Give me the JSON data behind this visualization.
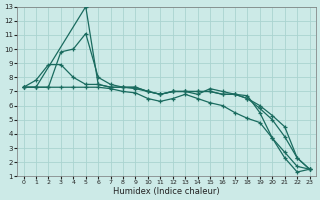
{
  "xlabel": "Humidex (Indice chaleur)",
  "bg_color": "#cceae7",
  "grid_color": "#aad4d0",
  "line_color": "#1a6b5f",
  "xlim": [
    -0.5,
    23.5
  ],
  "ylim": [
    1,
    13
  ],
  "xticks": [
    0,
    1,
    2,
    3,
    4,
    5,
    6,
    7,
    8,
    9,
    10,
    11,
    12,
    13,
    14,
    15,
    16,
    17,
    18,
    19,
    20,
    21,
    22,
    23
  ],
  "yticks": [
    1,
    2,
    3,
    4,
    5,
    6,
    7,
    8,
    9,
    10,
    11,
    12,
    13
  ],
  "line1_x": [
    0,
    1,
    5,
    6,
    7,
    8,
    9,
    10,
    11,
    12,
    13,
    14,
    15,
    16,
    17,
    18,
    19,
    20,
    21,
    22,
    23
  ],
  "line1_y": [
    7.3,
    7.3,
    13.0,
    7.5,
    7.3,
    7.3,
    7.3,
    7.0,
    6.8,
    7.0,
    7.0,
    6.8,
    7.2,
    7.0,
    6.8,
    6.7,
    5.5,
    3.7,
    2.3,
    1.3,
    1.5
  ],
  "line2_x": [
    0,
    1,
    2,
    3,
    4,
    5,
    6,
    7,
    8,
    9,
    10,
    11,
    12,
    13,
    14,
    15,
    16,
    17,
    18,
    19,
    20,
    21,
    22,
    23
  ],
  "line2_y": [
    7.3,
    7.3,
    7.3,
    9.8,
    10.0,
    11.1,
    8.0,
    7.5,
    7.3,
    7.3,
    7.0,
    6.8,
    7.0,
    7.0,
    7.0,
    7.0,
    6.8,
    6.8,
    6.5,
    5.8,
    5.0,
    3.8,
    2.3,
    1.5
  ],
  "line3_x": [
    0,
    1,
    2,
    3,
    4,
    5,
    6,
    7,
    8,
    9,
    10,
    11,
    12,
    13,
    14,
    15,
    16,
    17,
    18,
    19,
    20,
    21,
    22,
    23
  ],
  "line3_y": [
    7.3,
    7.8,
    8.9,
    8.9,
    8.0,
    7.5,
    7.5,
    7.3,
    7.3,
    7.2,
    7.0,
    6.8,
    7.0,
    7.0,
    7.0,
    7.0,
    6.8,
    6.8,
    6.5,
    6.0,
    5.3,
    4.5,
    2.3,
    1.5
  ],
  "line4_x": [
    0,
    1,
    2,
    3,
    4,
    5,
    6,
    7,
    8,
    9,
    10,
    11,
    12,
    13,
    14,
    15,
    16,
    17,
    18,
    19,
    20,
    21,
    22,
    23
  ],
  "line4_y": [
    7.3,
    7.3,
    7.3,
    7.3,
    7.3,
    7.3,
    7.3,
    7.2,
    7.0,
    6.9,
    6.5,
    6.3,
    6.5,
    6.8,
    6.5,
    6.2,
    6.0,
    5.5,
    5.1,
    4.8,
    3.7,
    2.7,
    1.7,
    1.5
  ]
}
